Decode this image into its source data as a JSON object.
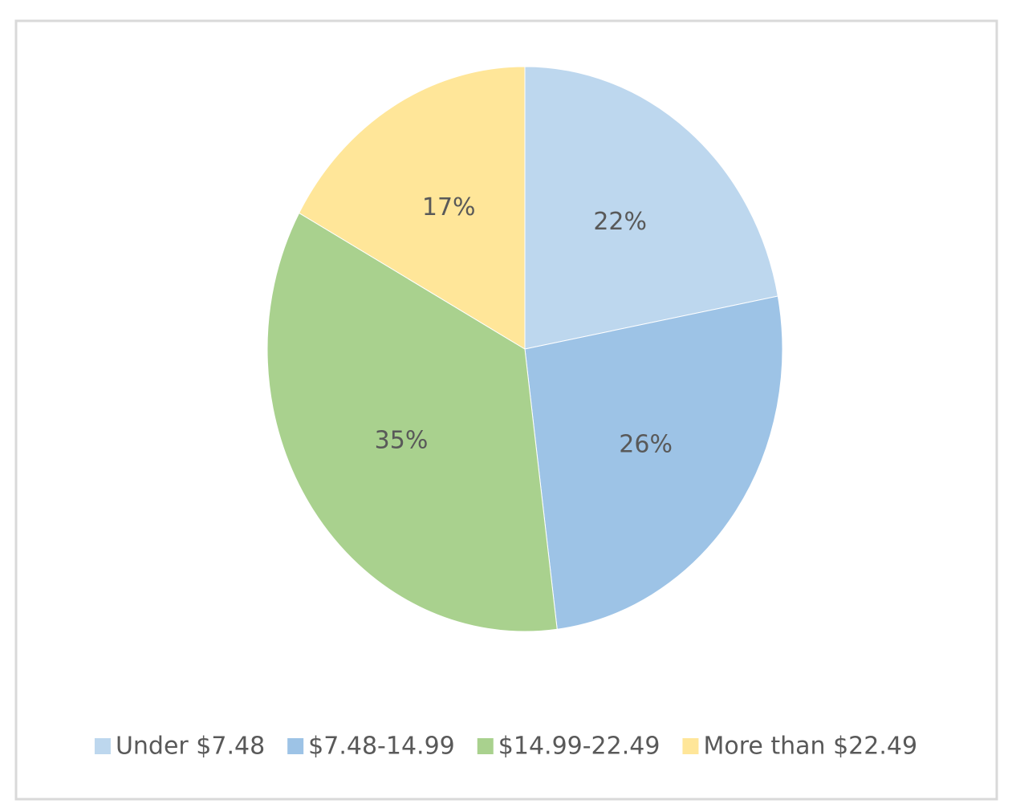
{
  "chart_data": {
    "type": "pie",
    "categories": [
      "Under $7.48",
      "$7.48-14.99",
      "$14.99-22.49",
      "More than $22.49"
    ],
    "values": [
      22,
      26,
      35,
      17
    ],
    "value_labels": [
      "22%",
      "26%",
      "35%",
      "17%"
    ],
    "colors": [
      "#bdd7ee",
      "#9dc3e6",
      "#a9d18e",
      "#ffe699"
    ],
    "legend": "bottom"
  }
}
